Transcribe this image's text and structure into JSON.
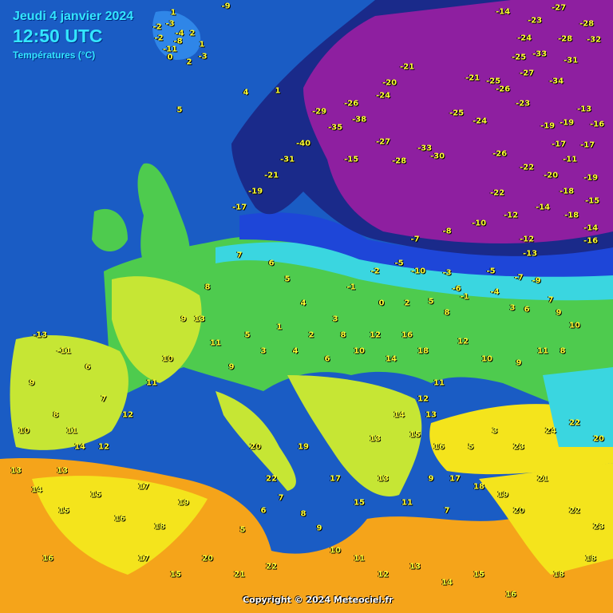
{
  "header": {
    "date": "Jeudi 4 janvier 2024",
    "time": "12:50 UTC",
    "subtitle": "Températures (°C)"
  },
  "copyright": "Copyright © 2024 Meteociel.fr",
  "colors": {
    "sea": "#1a5cc4",
    "very_cold": "#8e1fa0",
    "cold": "#1a2a8a",
    "cool": "#1e46d8",
    "cyan": "#3ad6e0",
    "green": "#4ecb4e",
    "yellowgreen": "#c6e634",
    "yellow": "#f4e41c",
    "orange": "#f5a41a",
    "label": "#ffff33"
  },
  "readings": [
    "1",
    "-3",
    "-2",
    "-4",
    "2",
    "-2",
    "-8",
    "1",
    "-11",
    "0",
    "-3",
    "2",
    "-9",
    "5",
    "4",
    "1",
    "-14",
    "-27",
    "-23",
    "-28",
    "-24",
    "-33",
    "-31",
    "-25",
    "-34",
    "-27",
    "-28",
    "-23",
    "-19",
    "-16",
    "-19",
    "-17",
    "-19",
    "-25",
    "-22",
    "-21",
    "-26",
    "-33",
    "-21",
    "-27",
    "-32",
    "-20",
    "-28",
    "-30",
    "-25",
    "-24",
    "-26",
    "-17",
    "-13",
    "-11",
    "-15",
    "-18",
    "-14",
    "-16",
    "-12",
    "-13",
    "-9",
    "-7",
    "-5",
    "-6",
    "-4",
    "-10",
    "-3",
    "-1",
    "3",
    "0",
    "2",
    "5",
    "8",
    "6",
    "7",
    "9",
    "10",
    "8",
    "11",
    "9",
    "10",
    "12",
    "11",
    "13",
    "12",
    "14",
    "13",
    "15",
    "16",
    "17",
    "18",
    "19",
    "20",
    "21",
    "22",
    "23",
    "18",
    "16",
    "15",
    "14",
    "13",
    "12",
    "11",
    "10",
    "9",
    "8",
    "7",
    "6",
    "5",
    "4",
    "3",
    "-1",
    "-2",
    "-5",
    "-7",
    "-8",
    "-10",
    "-12",
    "-14",
    "-18",
    "-20",
    "-22",
    "-24",
    "-26",
    "-29",
    "-35",
    "-38",
    "-40",
    "-31",
    "-21",
    "-19",
    "-17",
    "-15",
    "-13",
    "-11",
    "6",
    "7",
    "8",
    "9",
    "10",
    "11",
    "12",
    "13",
    "14",
    "15",
    "16",
    "17",
    "18",
    "19",
    "20",
    "21",
    "22",
    "17",
    "15",
    "13",
    "11",
    "9",
    "5",
    "3",
    "1",
    "4",
    "2",
    "6",
    "8",
    "10",
    "12",
    "14",
    "16",
    "18",
    "20",
    "22",
    "19",
    "17",
    "15",
    "13",
    "11",
    "9",
    "7",
    "5",
    "3",
    "23",
    "24",
    "22",
    "20",
    "18",
    "16",
    "15",
    "14",
    "13",
    "12",
    "11",
    "10",
    "9",
    "8",
    "7",
    "6",
    "5"
  ]
}
